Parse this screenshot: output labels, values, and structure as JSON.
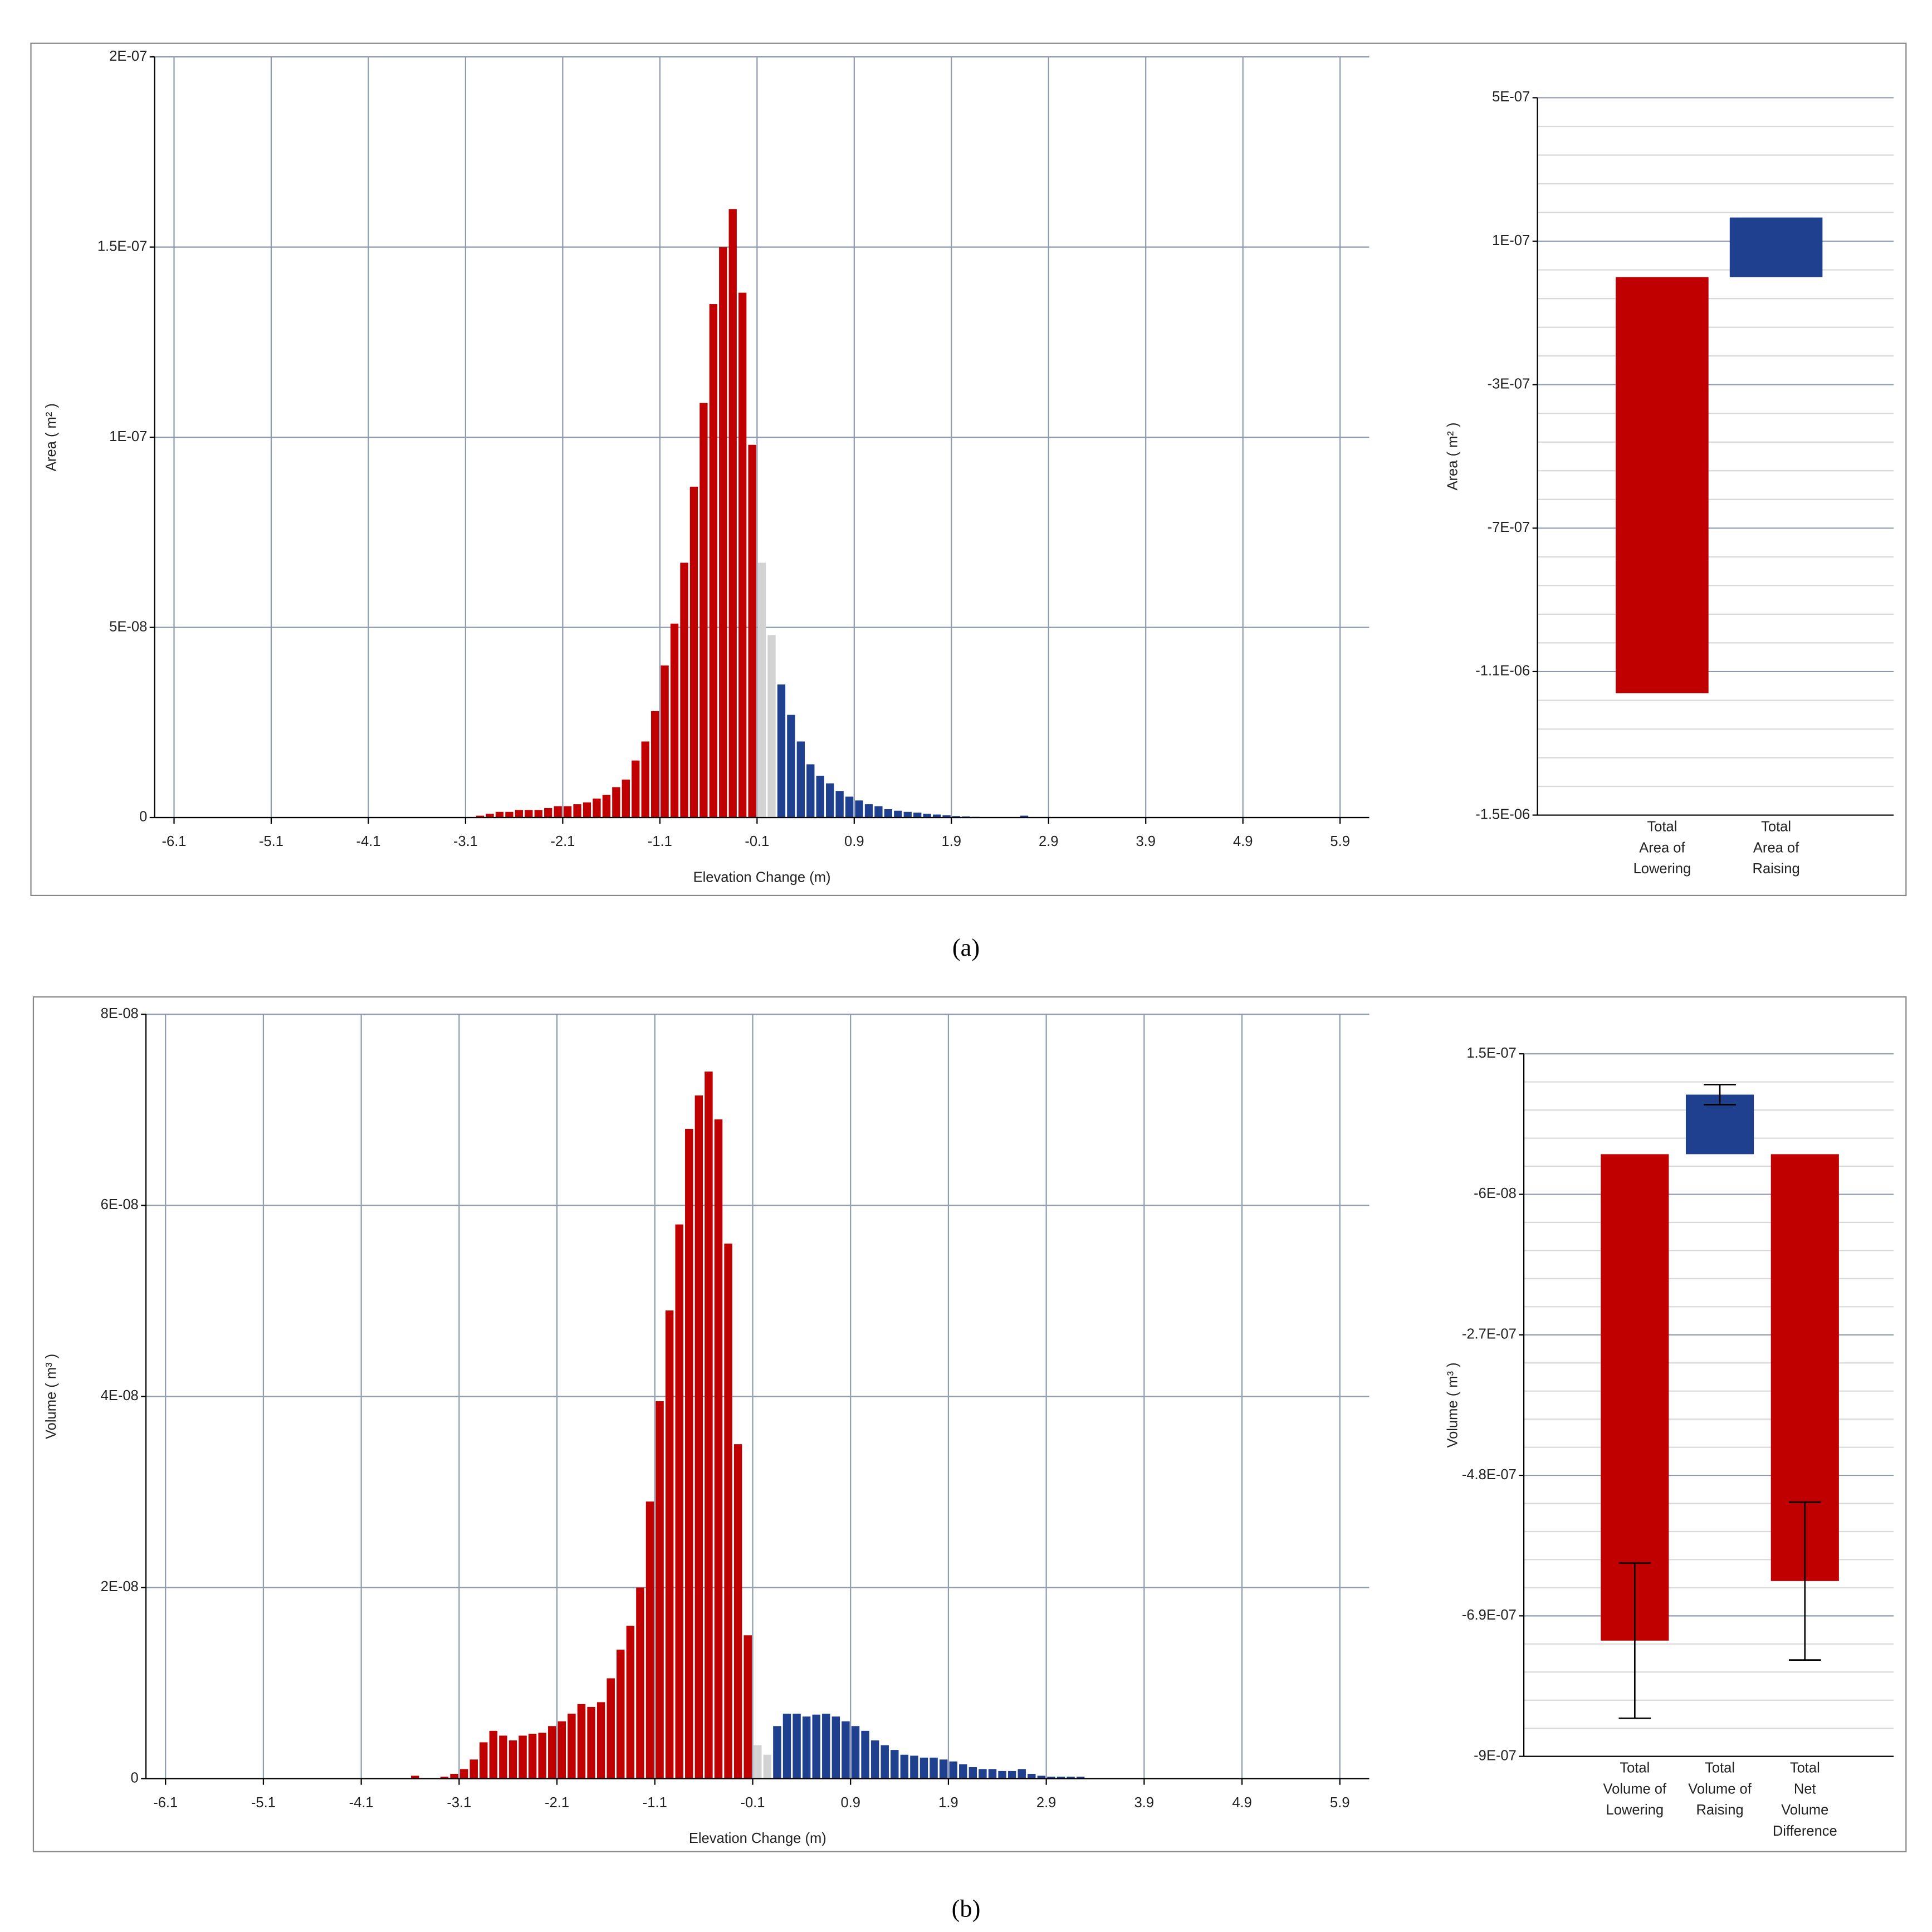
{
  "chart_data": [
    {
      "type": "histogram",
      "xlabel": "Elevation Change (m)",
      "ylabel": "Area ( m² )",
      "bins": [
        -3.0,
        -2.9,
        -2.8,
        -2.7,
        -2.6,
        -2.5,
        -2.4,
        -2.3,
        -2.2,
        -2.1,
        -2.0,
        -1.9,
        -1.8,
        -1.7,
        -1.6,
        -1.5,
        -1.4,
        -1.3,
        -1.2,
        -1.1,
        -1.0,
        -0.9,
        -0.8,
        -0.7,
        -0.6,
        -0.5,
        -0.4,
        -0.3,
        -0.2,
        -0.1,
        0.0,
        0.1,
        0.2,
        0.3,
        0.4,
        0.5,
        0.6,
        0.7,
        0.8,
        0.9,
        1.0,
        1.1,
        1.2,
        1.3,
        1.4,
        1.5,
        1.6,
        1.7,
        1.8,
        1.9,
        2.0,
        2.1,
        2.2,
        2.3,
        2.4,
        2.5,
        2.6,
        2.7,
        2.8
      ],
      "values": [
        5e-10,
        1e-09,
        1.5e-09,
        1.5e-09,
        2e-09,
        2e-09,
        2e-09,
        2.5e-09,
        3e-09,
        3e-09,
        3.5e-09,
        4e-09,
        5e-09,
        6e-09,
        8e-09,
        1e-08,
        1.5e-08,
        2e-08,
        2.8e-08,
        4e-08,
        5.1e-08,
        6.7e-08,
        8.7e-08,
        1.09e-07,
        1.35e-07,
        1.5e-07,
        1.6e-07,
        1.38e-07,
        9.8e-08,
        6.7e-08,
        4.8e-08,
        3.5e-08,
        2.7e-08,
        2e-08,
        1.4e-08,
        1.1e-08,
        9e-09,
        7e-09,
        5.5e-09,
        4.5e-09,
        3.5e-09,
        3e-09,
        2.2e-09,
        1.8e-09,
        1.5e-09,
        1.3e-09,
        1e-09,
        8e-10,
        6e-10,
        4e-10,
        3e-10,
        2e-10,
        0,
        0,
        0,
        0,
        5e-10,
        0
      ],
      "colors": [
        "#c00000",
        "#c00000",
        "#c00000",
        "#c00000",
        "#c00000",
        "#c00000",
        "#c00000",
        "#c00000",
        "#c00000",
        "#c00000",
        "#c00000",
        "#c00000",
        "#c00000",
        "#c00000",
        "#c00000",
        "#c00000",
        "#c00000",
        "#c00000",
        "#c00000",
        "#c00000",
        "#c00000",
        "#c00000",
        "#c00000",
        "#c00000",
        "#c00000",
        "#c00000",
        "#c00000",
        "#c00000",
        "#c00000",
        "#d3d3d3",
        "#d3d3d3",
        "#1f3f8f",
        "#1f3f8f",
        "#1f3f8f",
        "#1f3f8f",
        "#1f3f8f",
        "#1f3f8f",
        "#1f3f8f",
        "#1f3f8f",
        "#1f3f8f",
        "#1f3f8f",
        "#1f3f8f",
        "#1f3f8f",
        "#1f3f8f",
        "#1f3f8f",
        "#1f3f8f",
        "#1f3f8f",
        "#1f3f8f",
        "#1f3f8f",
        "#1f3f8f",
        "#1f3f8f",
        "#1f3f8f",
        "#1f3f8f",
        "#1f3f8f",
        "#1f3f8f",
        "#1f3f8f",
        "#1f3f8f",
        "#1f3f8f"
      ],
      "xlim": [
        -6.3,
        6.2
      ],
      "xticks": [
        -6.1,
        -5.1,
        -4.1,
        -3.1,
        -2.1,
        -1.1,
        -0.1,
        0.9,
        1.9,
        2.9,
        3.9,
        4.9,
        5.9
      ],
      "ylim": [
        0,
        2e-07
      ],
      "yticks": [
        0,
        {
          "value": 5e-08,
          "label": "5E-08"
        },
        {
          "value": 1e-07,
          "label": "1E-07"
        },
        {
          "value": 1.5e-07,
          "label": "1.5E-07"
        },
        {
          "value": 2e-07,
          "label": "2E-07"
        }
      ],
      "grid": true
    },
    {
      "type": "bar",
      "ylabel": "Area ( m² )",
      "categories": [
        [
          "Total",
          "Area of",
          "Lowering"
        ],
        [
          "Total",
          "Area of",
          "Raising"
        ]
      ],
      "values": [
        -1.16e-06,
        1.66e-07
      ],
      "colors": [
        "#c00000",
        "#1f3f8f"
      ],
      "ylim": [
        -1.5e-06,
        5e-07
      ],
      "yticks": [
        {
          "value": -1.5e-06,
          "label": "-1.5E-06"
        },
        {
          "value": -1.1e-06,
          "label": "-1.1E-06"
        },
        {
          "value": -7e-07,
          "label": "-7E-07"
        },
        {
          "value": -3e-07,
          "label": "-3E-07"
        },
        {
          "value": 1e-07,
          "label": "1E-07"
        },
        {
          "value": 5e-07,
          "label": "5E-07"
        }
      ],
      "minor_yticks": [
        -1.42e-06,
        -1.34e-06,
        -1.26e-06,
        -1.18e-06,
        -1.02e-06,
        -9.4e-07,
        -8.6e-07,
        -7.8e-07,
        -6.2e-07,
        -5.4e-07,
        -4.6e-07,
        -3.8e-07,
        -2.2e-07,
        -1.4e-07,
        -6e-08,
        2e-08,
        1.8e-07,
        2.6e-07,
        3.4e-07,
        4.2e-07
      ],
      "grid": true
    },
    {
      "type": "histogram",
      "xlabel": "Elevation Change (m)",
      "ylabel": "Volume ( m³ )",
      "bins": [
        -3.6,
        -3.5,
        -3.4,
        -3.3,
        -3.2,
        -3.1,
        -3.0,
        -2.9,
        -2.8,
        -2.7,
        -2.6,
        -2.5,
        -2.4,
        -2.3,
        -2.2,
        -2.1,
        -2.0,
        -1.9,
        -1.8,
        -1.7,
        -1.6,
        -1.5,
        -1.4,
        -1.3,
        -1.2,
        -1.1,
        -1.0,
        -0.9,
        -0.8,
        -0.7,
        -0.6,
        -0.5,
        -0.4,
        -0.3,
        -0.2,
        -0.1,
        0.0,
        0.1,
        0.2,
        0.3,
        0.4,
        0.5,
        0.6,
        0.7,
        0.8,
        0.9,
        1.0,
        1.1,
        1.2,
        1.3,
        1.4,
        1.5,
        1.6,
        1.7,
        1.8,
        1.9,
        2.0,
        2.1,
        2.2,
        2.3,
        2.4,
        2.5,
        2.6,
        2.7,
        2.8,
        2.9,
        3.0,
        3.1,
        3.2,
        3.3
      ],
      "values": [
        3e-10,
        0,
        0,
        2e-10,
        5e-10,
        1e-09,
        2e-09,
        3.8e-09,
        5e-09,
        4.5e-09,
        4e-09,
        4.5e-09,
        4.7e-09,
        4.8e-09,
        5.5e-09,
        6e-09,
        6.8e-09,
        7.8e-09,
        7.5e-09,
        8e-09,
        1.05e-08,
        1.35e-08,
        1.6e-08,
        2e-08,
        2.9e-08,
        3.95e-08,
        4.9e-08,
        5.8e-08,
        6.8e-08,
        7.15e-08,
        7.4e-08,
        6.9e-08,
        5.6e-08,
        3.5e-08,
        1.5e-08,
        3.5e-09,
        2.5e-09,
        5.5e-09,
        6.8e-09,
        6.8e-09,
        6.5e-09,
        6.7e-09,
        6.8e-09,
        6.5e-09,
        6e-09,
        5.5e-09,
        5e-09,
        4e-09,
        3.5e-09,
        3e-09,
        2.5e-09,
        2.4e-09,
        2.2e-09,
        2.2e-09,
        2e-09,
        1.8e-09,
        1.5e-09,
        1.2e-09,
        1e-09,
        1e-09,
        8e-10,
        8e-10,
        1e-09,
        5e-10,
        3e-10,
        2e-10,
        2e-10,
        2e-10,
        2e-10
      ],
      "colors": [
        "#c00000",
        "#c00000",
        "#c00000",
        "#c00000",
        "#c00000",
        "#c00000",
        "#c00000",
        "#c00000",
        "#c00000",
        "#c00000",
        "#c00000",
        "#c00000",
        "#c00000",
        "#c00000",
        "#c00000",
        "#c00000",
        "#c00000",
        "#c00000",
        "#c00000",
        "#c00000",
        "#c00000",
        "#c00000",
        "#c00000",
        "#c00000",
        "#c00000",
        "#c00000",
        "#c00000",
        "#c00000",
        "#c00000",
        "#c00000",
        "#c00000",
        "#c00000",
        "#c00000",
        "#c00000",
        "#c00000",
        "#d3d3d3",
        "#d3d3d3",
        "#1f3f8f",
        "#1f3f8f",
        "#1f3f8f",
        "#1f3f8f",
        "#1f3f8f",
        "#1f3f8f",
        "#1f3f8f",
        "#1f3f8f",
        "#1f3f8f",
        "#1f3f8f",
        "#1f3f8f",
        "#1f3f8f",
        "#1f3f8f",
        "#1f3f8f",
        "#1f3f8f",
        "#1f3f8f",
        "#1f3f8f",
        "#1f3f8f",
        "#1f3f8f",
        "#1f3f8f",
        "#1f3f8f",
        "#1f3f8f",
        "#1f3f8f",
        "#1f3f8f",
        "#1f3f8f",
        "#1f3f8f",
        "#1f3f8f",
        "#1f3f8f",
        "#1f3f8f",
        "#1f3f8f",
        "#1f3f8f",
        "#1f3f8f"
      ],
      "xlim": [
        -6.3,
        6.2
      ],
      "xticks": [
        -6.1,
        -5.1,
        -4.1,
        -3.1,
        -2.1,
        -1.1,
        -0.1,
        0.9,
        1.9,
        2.9,
        3.9,
        4.9,
        5.9
      ],
      "ylim": [
        0,
        8e-08
      ],
      "yticks": [
        0,
        {
          "value": 2e-08,
          "label": "2E-08"
        },
        {
          "value": 4e-08,
          "label": "4E-08"
        },
        {
          "value": 6e-08,
          "label": "6E-08"
        },
        {
          "value": 8e-08,
          "label": "8E-08"
        }
      ],
      "grid": true
    },
    {
      "type": "bar",
      "ylabel": "Volume ( m³ )",
      "categories": [
        [
          "Total",
          "Volume of",
          "Lowering"
        ],
        [
          "Total",
          "Volume of",
          "Raising"
        ],
        [
          "Total",
          "Net",
          "Volume",
          "Difference"
        ]
      ],
      "values": [
        -7.27e-07,
        8.9e-08,
        -6.38e-07
      ],
      "errors": [
        1.16e-07,
        1.5e-08,
        1.18e-07
      ],
      "colors": [
        "#c00000",
        "#1f3f8f",
        "#c00000"
      ],
      "ylim": [
        -9e-07,
        1.5e-07
      ],
      "yticks": [
        {
          "value": -9e-07,
          "label": "-9E-07"
        },
        {
          "value": -6.9e-07,
          "label": "-6.9E-07"
        },
        {
          "value": -4.8e-07,
          "label": "-4.8E-07"
        },
        {
          "value": -2.7e-07,
          "label": "-2.7E-07"
        },
        {
          "value": -6e-08,
          "label": "-6E-08"
        },
        {
          "value": 1.5e-07,
          "label": "1.5E-07"
        }
      ],
      "minor_yticks": [
        -8.58e-07,
        -8.16e-07,
        -7.74e-07,
        -7.32e-07,
        -6.48e-07,
        -6.06e-07,
        -5.64e-07,
        -5.22e-07,
        -4.38e-07,
        -3.96e-07,
        -3.54e-07,
        -3.12e-07,
        -2.28e-07,
        -1.86e-07,
        -1.44e-07,
        -1.02e-07,
        -1.8e-08,
        2.4e-08,
        6.6e-08,
        1.08e-07
      ],
      "grid": true
    }
  ],
  "captions": [
    "(a)",
    "(b)"
  ]
}
